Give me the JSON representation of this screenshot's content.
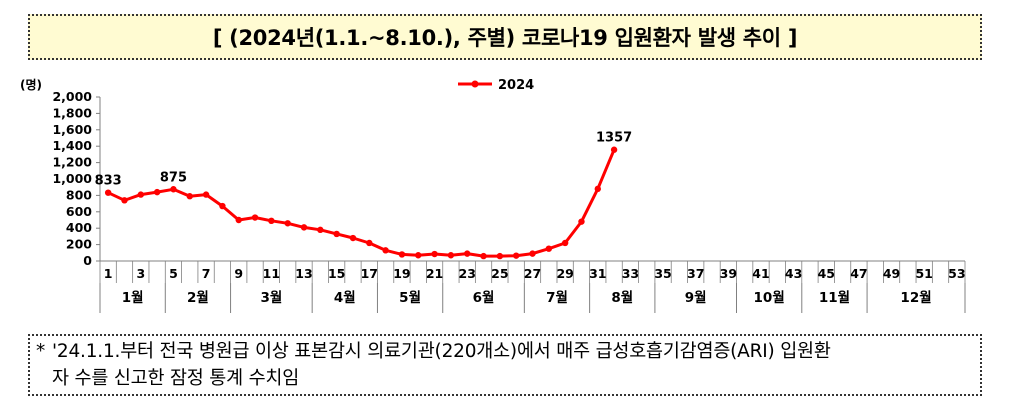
{
  "title": "[ (2024년(1.1.~8.10.), 주별) 코로나19 입원환자 발생 추이 ]",
  "note": {
    "marker": "*",
    "line1": "'24.1.1.부터 전국 병원급 이상 표본감시 의료기관(220개소)에서 매주 급성호흡기감염증(ARI) 입원환",
    "line2": "자 수를 신고한 잠정 통계 수치임"
  },
  "colors": {
    "series": "#ff0000",
    "title_bg": "#fffbd2",
    "axis": "#808080"
  },
  "chart_data": {
    "type": "line",
    "title": "",
    "ylabel": "(명)",
    "xlabel": "",
    "ylim": [
      0,
      2000
    ],
    "y_ticks": [
      "0",
      "200",
      "400",
      "600",
      "800",
      "1,000",
      "1,200",
      "1,400",
      "1,600",
      "1,800",
      "2,000"
    ],
    "y_tick_values": [
      0,
      200,
      400,
      600,
      800,
      1000,
      1200,
      1400,
      1600,
      1800,
      2000
    ],
    "week_count": 53,
    "week_tick_labels": [
      "1",
      "3",
      "5",
      "7",
      "9",
      "11",
      "13",
      "15",
      "17",
      "19",
      "21",
      "23",
      "25",
      "27",
      "29",
      "31",
      "33",
      "35",
      "37",
      "39",
      "41",
      "43",
      "45",
      "47",
      "49",
      "51",
      "53"
    ],
    "months": [
      {
        "label": "1월",
        "start_week": 1,
        "end_week": 4
      },
      {
        "label": "2월",
        "start_week": 5,
        "end_week": 8
      },
      {
        "label": "3월",
        "start_week": 9,
        "end_week": 13
      },
      {
        "label": "4월",
        "start_week": 14,
        "end_week": 17
      },
      {
        "label": "5월",
        "start_week": 18,
        "end_week": 21
      },
      {
        "label": "6월",
        "start_week": 22,
        "end_week": 26
      },
      {
        "label": "7월",
        "start_week": 27,
        "end_week": 30
      },
      {
        "label": "8월",
        "start_week": 31,
        "end_week": 34
      },
      {
        "label": "9월",
        "start_week": 35,
        "end_week": 39
      },
      {
        "label": "10월",
        "start_week": 40,
        "end_week": 43
      },
      {
        "label": "11월",
        "start_week": 44,
        "end_week": 47
      },
      {
        "label": "12월",
        "start_week": 48,
        "end_week": 53
      }
    ],
    "legend_position": "top-center",
    "grid": false,
    "series": [
      {
        "name": "2024",
        "x": [
          1,
          2,
          3,
          4,
          5,
          6,
          7,
          8,
          9,
          10,
          11,
          12,
          13,
          14,
          15,
          16,
          17,
          18,
          19,
          20,
          21,
          22,
          23,
          24,
          25,
          26,
          27,
          28,
          29,
          30,
          31,
          32
        ],
        "values": [
          833,
          740,
          810,
          840,
          875,
          790,
          810,
          670,
          500,
          530,
          490,
          460,
          410,
          380,
          330,
          280,
          220,
          130,
          80,
          70,
          85,
          70,
          90,
          60,
          60,
          65,
          90,
          150,
          220,
          480,
          880,
          1357
        ]
      }
    ],
    "data_labels": [
      {
        "week": 1,
        "text": "833"
      },
      {
        "week": 5,
        "text": "875"
      },
      {
        "week": 32,
        "text": "1357"
      }
    ]
  }
}
